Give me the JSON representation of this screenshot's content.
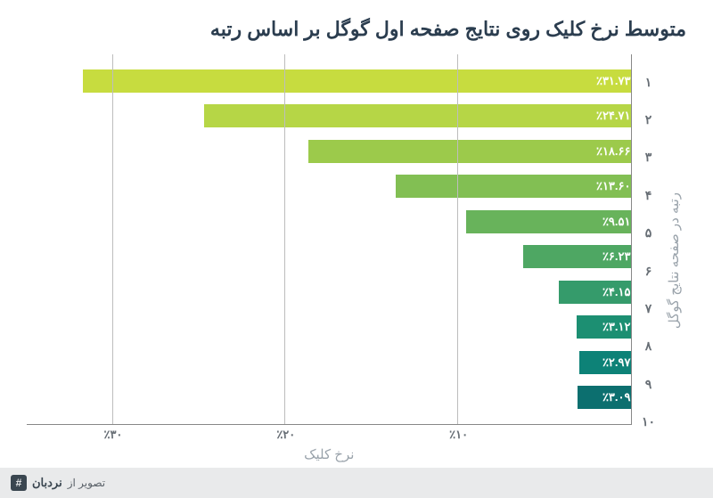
{
  "title": "متوسط نرخ کلیک روی نتایج صفحه اول گوگل بر اساس رتبه",
  "chart": {
    "type": "bar-horizontal",
    "xlabel": "نرخ کلیک",
    "ylabel": "رتبه در صفحه نتایج گوگل",
    "xlim_max": 35,
    "xticks": [
      {
        "value": 10,
        "label": "٪۱۰"
      },
      {
        "value": 20,
        "label": "٪۲۰"
      },
      {
        "value": 30,
        "label": "٪۳۰"
      }
    ],
    "grid_color": "#bdbdbd",
    "axis_color": "#888888",
    "background": "#ffffff",
    "ytick_color": "#676e75",
    "axis_label_color": "#9aa3ab",
    "bar_label_color": "#ffffff",
    "bars": [
      {
        "rank": "۱",
        "value": 31.73,
        "label": "٪۳۱.۷۳",
        "color": "#c7dc3f"
      },
      {
        "rank": "۲",
        "value": 24.71,
        "label": "٪۲۴.۷۱",
        "color": "#b6d646"
      },
      {
        "rank": "۳",
        "value": 18.66,
        "label": "٪۱۸.۶۶",
        "color": "#9cca4b"
      },
      {
        "rank": "۴",
        "value": 13.6,
        "label": "٪۱۳.۶۰",
        "color": "#82bf53"
      },
      {
        "rank": "۵",
        "value": 9.51,
        "label": "٪۹.۵۱",
        "color": "#68b35b"
      },
      {
        "rank": "۶",
        "value": 6.23,
        "label": "٪۶.۲۳",
        "color": "#4ea763"
      },
      {
        "rank": "۷",
        "value": 4.15,
        "label": "٪۴.۱۵",
        "color": "#359b6b"
      },
      {
        "rank": "۸",
        "value": 3.12,
        "label": "٪۳.۱۲",
        "color": "#1c8f72"
      },
      {
        "rank": "۹",
        "value": 2.97,
        "label": "٪۲.۹۷",
        "color": "#0d8277"
      },
      {
        "rank": "۱۰",
        "value": 3.09,
        "label": "٪۳.۰۹",
        "color": "#0c6f6f"
      }
    ]
  },
  "footer": {
    "caption": "تصویر از",
    "brand": "نردبان",
    "icon_glyph": "#"
  }
}
